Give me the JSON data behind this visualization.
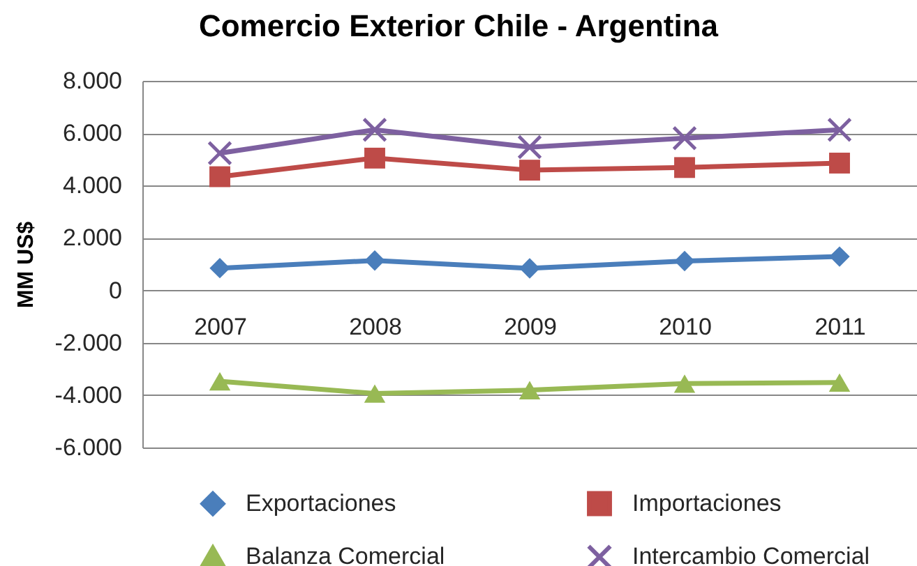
{
  "chart_data": {
    "type": "line",
    "title": "Comercio Exterior Chile - Argentina",
    "ylabel": "MM US$",
    "categories": [
      "2007",
      "2008",
      "2009",
      "2010",
      "2011"
    ],
    "series": [
      {
        "name": "Exportaciones",
        "color": "#4a7ebb",
        "marker": "diamond",
        "values": [
          850,
          1140,
          840,
          1120,
          1290
        ]
      },
      {
        "name": "Importaciones",
        "color": "#be4b48",
        "marker": "square",
        "values": [
          4340,
          5050,
          4590,
          4690,
          4860
        ]
      },
      {
        "name": "Balanza Comercial",
        "color": "#98b954",
        "marker": "triangle",
        "values": [
          -3470,
          -3940,
          -3810,
          -3560,
          -3520
        ]
      },
      {
        "name": "Intercambio Comercial",
        "color": "#7d60a0",
        "marker": "cross",
        "values": [
          5240,
          6130,
          5470,
          5810,
          6130
        ]
      }
    ],
    "ylim": [
      -6000,
      8000
    ],
    "yticks": [
      {
        "value": -6000,
        "label": "-6.000"
      },
      {
        "value": -4000,
        "label": "-4.000"
      },
      {
        "value": -2000,
        "label": "-2.000"
      },
      0,
      {
        "value": 2000,
        "label": "2.000"
      },
      {
        "value": 4000,
        "label": "4.000"
      },
      {
        "value": 6000,
        "label": "6.000"
      },
      {
        "value": 8000,
        "label": "8.000"
      }
    ],
    "grid": "y",
    "legend": "bottom",
    "line_style": "solid"
  }
}
